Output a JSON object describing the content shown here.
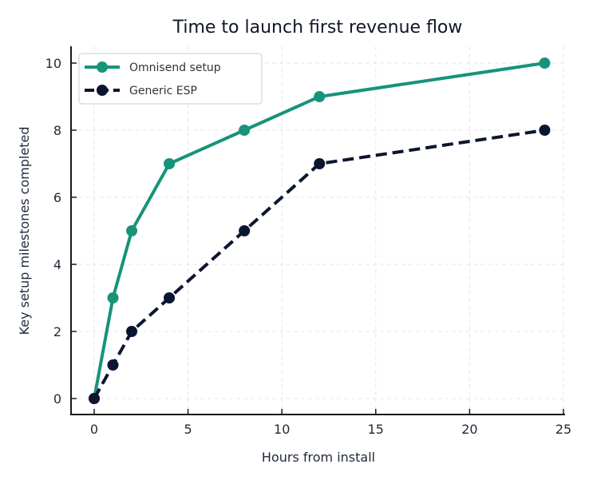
{
  "chart_data": {
    "type": "line",
    "title": "Time to launch first revenue flow",
    "xlabel": "Hours from install",
    "ylabel": "Key setup milestones completed",
    "xlim": [
      -1.2,
      25.2
    ],
    "ylim": [
      -0.5,
      10.5
    ],
    "xticks": [
      0,
      5,
      10,
      15,
      20,
      25
    ],
    "yticks": [
      0,
      2,
      4,
      6,
      8,
      10
    ],
    "grid": true,
    "legend_position": "upper left",
    "series": [
      {
        "name": "Omnisend setup",
        "color": "#17937a",
        "dash": "solid",
        "x": [
          0,
          1,
          2,
          4,
          8,
          12,
          24
        ],
        "y": [
          0,
          3,
          5,
          7,
          8,
          9,
          10
        ]
      },
      {
        "name": "Generic ESP",
        "color": "#0c1530",
        "dash": "dashed",
        "x": [
          0,
          1,
          2,
          4,
          8,
          12,
          24
        ],
        "y": [
          0,
          1,
          2,
          3,
          5,
          7,
          8
        ]
      }
    ]
  }
}
